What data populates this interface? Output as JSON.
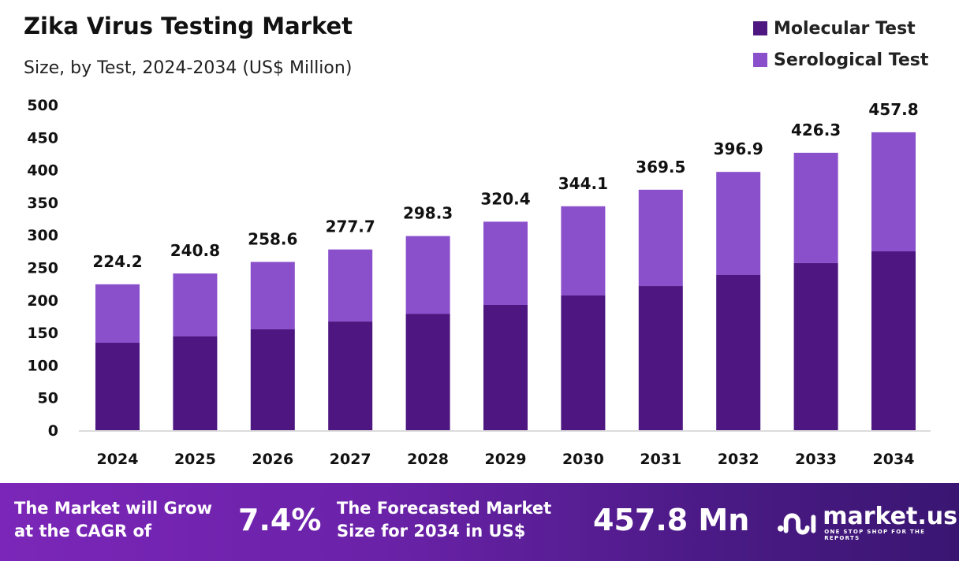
{
  "title": "Zika Virus Testing Market",
  "subtitle": "Size, by Test, 2024-2034 (US$ Million)",
  "colors": {
    "molecular": "#4d1680",
    "serological": "#8a4fcb"
  },
  "chart_data": {
    "type": "bar",
    "stacked": true,
    "title": "Zika Virus Testing Market",
    "subtitle": "Size, by Test, 2024-2034 (US$ Million)",
    "categories": [
      "2024",
      "2025",
      "2026",
      "2027",
      "2028",
      "2029",
      "2030",
      "2031",
      "2032",
      "2033",
      "2034"
    ],
    "series": [
      {
        "name": "Molecular Test",
        "values": [
          134.4,
          144.1,
          155.0,
          167.0,
          179.0,
          192.5,
          207.0,
          221.5,
          238.5,
          256.7,
          274.8
        ]
      },
      {
        "name": "Serological Test",
        "values": [
          89.8,
          96.7,
          103.6,
          110.7,
          119.3,
          127.9,
          137.1,
          148.0,
          158.4,
          169.6,
          183.0
        ]
      }
    ],
    "totals": [
      "224.2",
      "240.8",
      "258.6",
      "277.7",
      "298.3",
      "320.4",
      "344.1",
      "369.5",
      "396.9",
      "426.3",
      "457.8"
    ],
    "ylim": [
      0,
      500
    ],
    "yticks": [
      "0",
      "50",
      "100",
      "150",
      "200",
      "250",
      "300",
      "350",
      "400",
      "450",
      "500"
    ],
    "grid": false,
    "legend": "top-right"
  },
  "legend": [
    {
      "label": "Molecular Test"
    },
    {
      "label": "Serological Test"
    }
  ],
  "footer": {
    "cagr_text_1": "The Market will Grow",
    "cagr_text_2": "at the CAGR of",
    "cagr_value": "7.4%",
    "forecast_text_1": "The Forecasted Market",
    "forecast_text_2": "Size for 2034 in US$",
    "forecast_value": "457.8 Mn",
    "logo_name": "market.us",
    "logo_tagline": "ONE STOP SHOP FOR THE REPORTS"
  }
}
